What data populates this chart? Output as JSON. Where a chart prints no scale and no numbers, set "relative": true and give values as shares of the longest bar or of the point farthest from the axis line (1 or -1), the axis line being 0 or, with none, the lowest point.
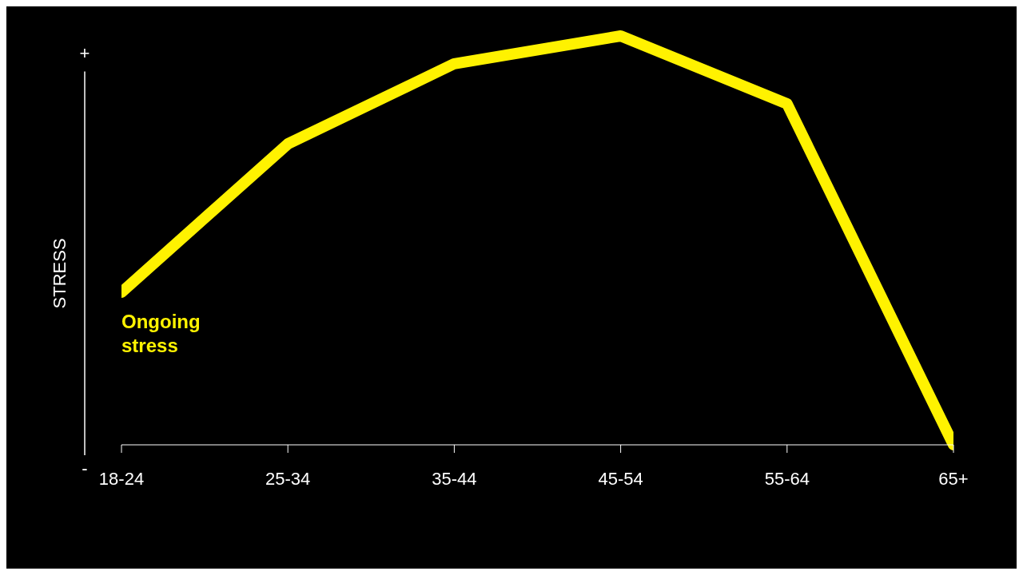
{
  "chart_data": {
    "type": "line",
    "ylabel": "STRESS",
    "relative": true,
    "marker": "none",
    "line_style": "solid",
    "categories": [
      "18-24",
      "25-34",
      "35-44",
      "45-54",
      "55-64",
      "65+"
    ],
    "series": [
      {
        "color": "#fff200",
        "values": [
          0.373,
          0.736,
          0.932,
          1,
          0.834,
          0
        ]
      }
    ],
    "annotations": [
      "+",
      "-",
      {
        "text": "Ongoing stress",
        "x": "18-24",
        "y": 0.373
      }
    ]
  }
}
